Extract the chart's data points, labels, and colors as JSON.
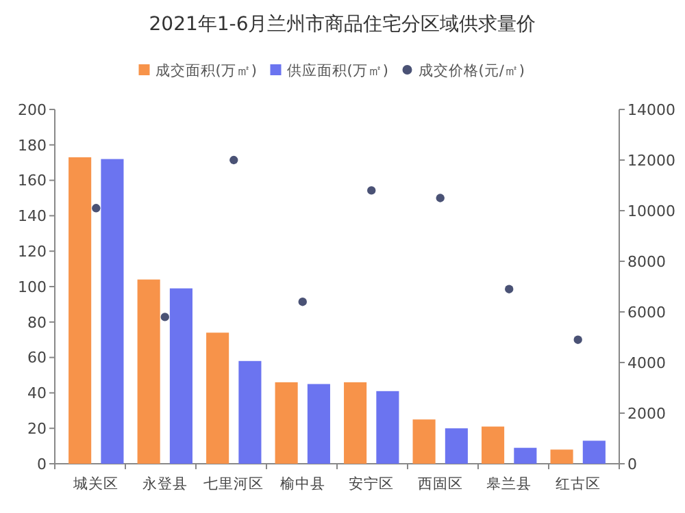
{
  "chart_data": {
    "type": "bar",
    "title": "2021年1-6月兰州市商品住宅分区域供求量价",
    "categories": [
      "城关区",
      "永登县",
      "七里河区",
      "榆中县",
      "安宁区",
      "西固区",
      "皋兰县",
      "红古区"
    ],
    "series": [
      {
        "name": "成交面积(万㎡)",
        "color": "#f7934a",
        "values": [
          173,
          104,
          74,
          46,
          46,
          25,
          21,
          8
        ]
      },
      {
        "name": "供应面积(万㎡)",
        "color": "#6b74f0",
        "values": [
          172,
          99,
          58,
          45,
          41,
          20,
          9,
          13
        ]
      },
      {
        "name": "成交价格(元/㎡)",
        "type": "scatter",
        "axis": "y2",
        "color": "#4a5275",
        "values": [
          10100,
          5800,
          12000,
          6400,
          10800,
          10500,
          6900,
          4900
        ]
      }
    ],
    "ylim": [
      0,
      200
    ],
    "yticks": [
      0,
      20,
      40,
      60,
      80,
      100,
      120,
      140,
      160,
      180,
      200
    ],
    "y2lim": [
      0,
      14000
    ],
    "y2ticks": [
      0,
      2000,
      4000,
      6000,
      8000,
      10000,
      12000,
      14000
    ],
    "legend": "top",
    "marker": "circle",
    "grid": false
  }
}
